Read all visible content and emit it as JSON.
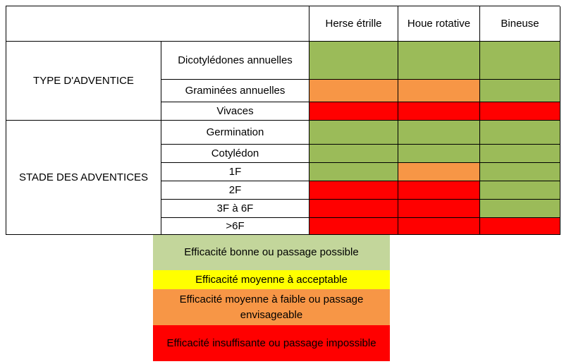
{
  "colors": {
    "green": "#9BBB59",
    "orange": "#F79646",
    "red": "#FF0000",
    "yellow": "#FFFF00",
    "light_green": "#C3D69B"
  },
  "table": {
    "methods": [
      "Herse étrille",
      "Houe rotative",
      "Bineuse"
    ],
    "groups": [
      {
        "label": "TYPE D'ADVENTICE",
        "rows": [
          {
            "label": "Dicotylédones annuelles",
            "ratings": [
              "green",
              "green",
              "green"
            ]
          },
          {
            "label": "Graminées annuelles",
            "ratings": [
              "orange",
              "orange",
              "green"
            ]
          },
          {
            "label": "Vivaces",
            "ratings": [
              "red",
              "red",
              "red"
            ]
          }
        ]
      },
      {
        "label": "STADE DES ADVENTICES",
        "rows": [
          {
            "label": "Germination",
            "ratings": [
              "green",
              "green",
              "green"
            ]
          },
          {
            "label": "Cotylédon",
            "ratings": [
              "green",
              "green",
              "green"
            ]
          },
          {
            "label": "1F",
            "ratings": [
              "green",
              "orange",
              "green"
            ]
          },
          {
            "label": "2F",
            "ratings": [
              "red",
              "red",
              "green"
            ]
          },
          {
            "label": "3F à 6F",
            "ratings": [
              "red",
              "red",
              "green"
            ]
          },
          {
            "label": ">6F",
            "ratings": [
              "red",
              "red",
              "red"
            ]
          }
        ]
      }
    ]
  },
  "legend": [
    {
      "color": "light_green",
      "text": "Efficacité bonne ou passage possible"
    },
    {
      "color": "yellow",
      "text": "Efficacité moyenne à acceptable"
    },
    {
      "color": "orange",
      "text": "Efficacité moyenne à faible ou passage envisageable"
    },
    {
      "color": "red",
      "text": "Efficacité insuffisante ou passage impossible"
    }
  ]
}
